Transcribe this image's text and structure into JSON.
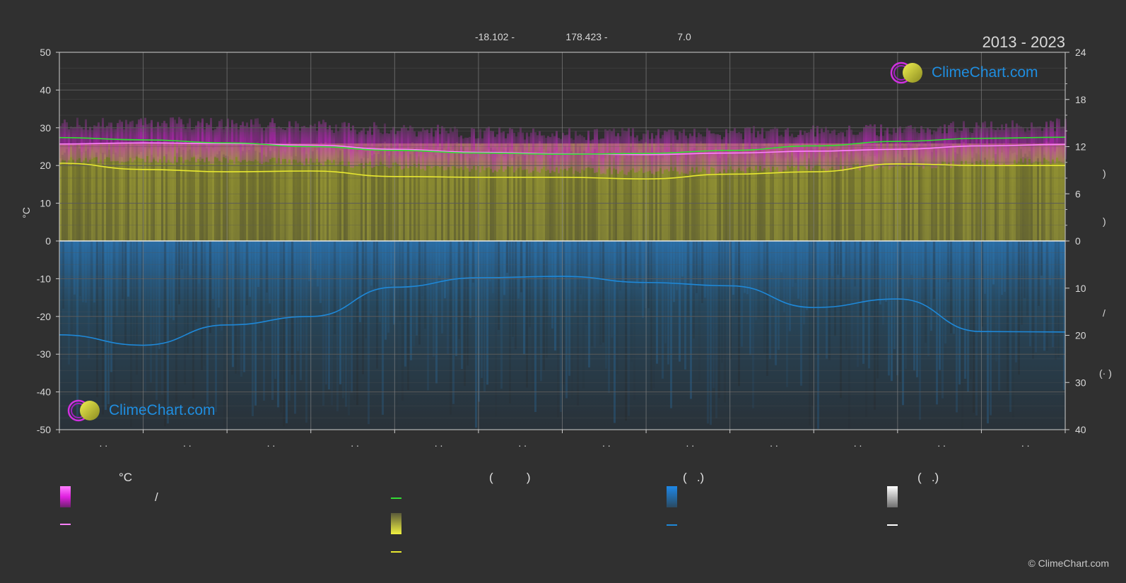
{
  "header": {
    "coords_lat": "-18.102 -",
    "coords_lon": "178.423 -",
    "elevation": "7.0",
    "period": "2013 - 2023"
  },
  "branding": {
    "logo_text": "ClimeChart.com",
    "copyright": "© ClimeChart.com"
  },
  "legend": {
    "temp_heading": "°C",
    "daylight_heading": "(          )",
    "rain_heading": "(   .)",
    "snow_heading": "(   .)",
    "slash_text": "/"
  },
  "colors": {
    "background": "#303030",
    "magenta": "#e020e0",
    "green": "#33dd33",
    "yellow": "#e8e830",
    "blue": "#1e88d8",
    "pink": "#ff80ff",
    "white": "#ffffff"
  },
  "chart_data": {
    "type": "line",
    "ylabel_left": "°C",
    "ylim_left": [
      -50,
      50
    ],
    "yticks_left": [
      50,
      40,
      30,
      20,
      10,
      0,
      -10,
      -20,
      -30,
      -40,
      -50
    ],
    "yticks_right_top": [
      24,
      18,
      12,
      6,
      0
    ],
    "yticks_right_bottom": [
      10,
      20,
      30,
      40
    ],
    "right_top_range": [
      0,
      24
    ],
    "right_bottom_range": [
      0,
      40
    ],
    "months": 12,
    "x_tick_labels": [
      ". .",
      ". .",
      ". .",
      ". .",
      ". .",
      ". .",
      ". .",
      ". .",
      ". .",
      ". .",
      ". .",
      ". ."
    ],
    "series": [
      {
        "key": "day_temp_max_avg",
        "color": "#ff80ff",
        "axis": "temp",
        "values": [
          25.7,
          26.0,
          25.8,
          25.4,
          24.3,
          23.5,
          23.1,
          22.9,
          23.3,
          23.8,
          24.3,
          25.2,
          25.6
        ]
      },
      {
        "key": "sea_temp",
        "color": "#33dd33",
        "axis": "temp",
        "values": [
          27.4,
          26.8,
          26.0,
          25.0,
          24.0,
          23.3,
          23.0,
          23.2,
          24.0,
          25.2,
          26.4,
          27.2,
          27.5
        ]
      },
      {
        "key": "sunshine_hours",
        "color": "#e8e830",
        "axis": "right_top",
        "values": [
          9.9,
          9.1,
          8.8,
          8.9,
          8.2,
          8.1,
          8.1,
          7.9,
          8.5,
          8.8,
          9.8,
          9.6,
          9.6
        ]
      },
      {
        "key": "precipitation",
        "color": "#1e88d8",
        "axis": "right_bottom",
        "values": [
          19.9,
          22.1,
          17.8,
          16.0,
          9.8,
          7.8,
          7.5,
          8.8,
          9.5,
          14.1,
          12.3,
          19.2,
          19.3
        ]
      }
    ]
  }
}
